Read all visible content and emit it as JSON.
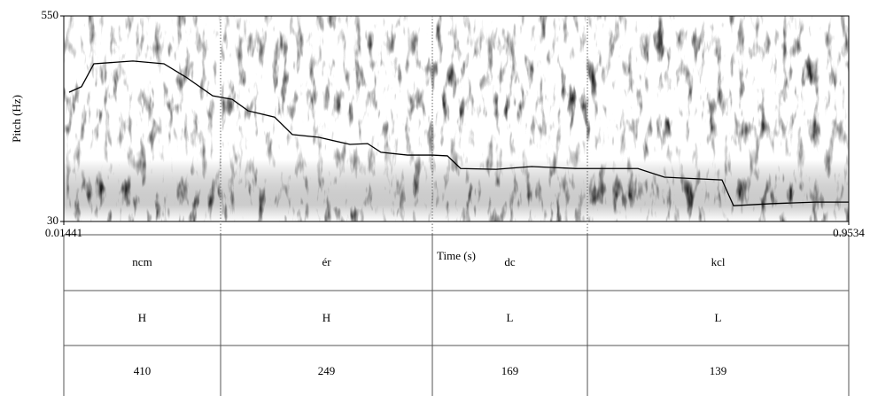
{
  "chart_data": {
    "type": "line",
    "y_label": "Pitch (Hz)",
    "x_label": "Time (s)",
    "xlim": [
      0.01441,
      0.9534
    ],
    "xticks": [
      0.01441,
      0.9534
    ],
    "ylim": [
      30,
      550
    ],
    "yticks": [
      30,
      550
    ],
    "x": [
      0.0208,
      0.0356,
      0.0504,
      0.0971,
      0.1342,
      0.1607,
      0.1925,
      0.2158,
      0.2349,
      0.2666,
      0.2878,
      0.3196,
      0.3567,
      0.3779,
      0.3938,
      0.4256,
      0.4553,
      0.4733,
      0.4892,
      0.5316,
      0.574,
      0.627,
      0.7012,
      0.733,
      0.8018,
      0.8156,
      0.8601,
      0.9131,
      0.9534
    ],
    "series": [
      {
        "color": "#000000",
        "values": [
          357,
          371,
          429,
          436,
          429,
          395,
          348,
          339,
          310,
          294,
          250,
          243,
          225,
          227,
          205,
          198,
          198,
          196,
          164,
          162,
          169,
          164,
          164,
          142,
          135,
          70,
          75,
          79,
          79
        ]
      }
    ],
    "tier_boundaries": [
      0.202,
      0.4553,
      0.6408
    ],
    "tiers": [
      [
        "ncm",
        "ér",
        "dc",
        "kcl"
      ],
      [
        "H",
        "H",
        "L",
        "L"
      ],
      [
        410,
        249,
        169,
        139
      ]
    ]
  }
}
